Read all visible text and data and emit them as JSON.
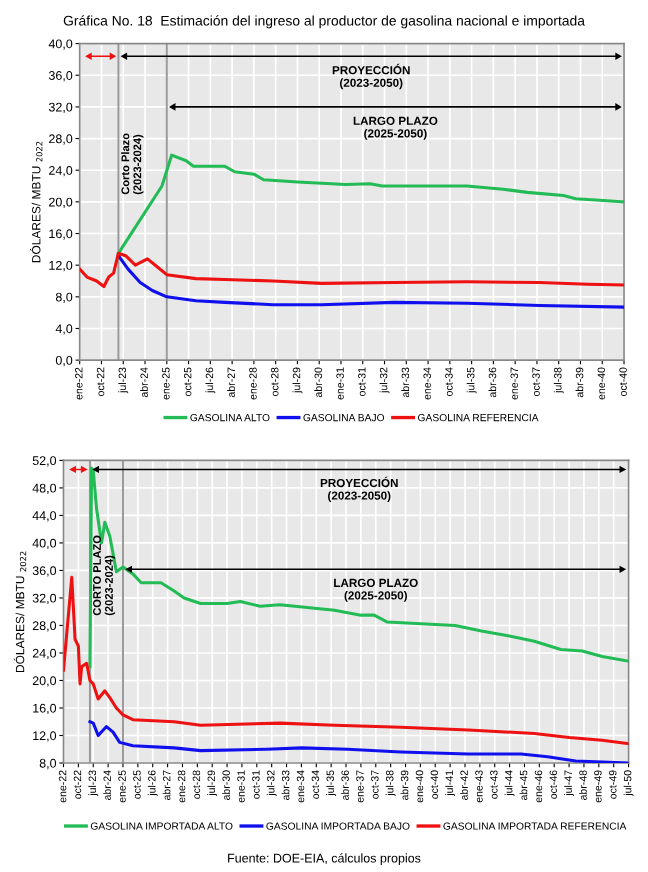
{
  "chart_data": [
    {
      "type": "line",
      "title": "Gráfica No. 18  Estimación del ingreso al productor de gasolina nacional e importada",
      "ylabel": "DÓLARES/ MBTU $_{2022}$",
      "series": [
        {
          "name": "GASOLINA ALTO",
          "color": "#22bb55",
          "x": [
            "2023-05",
            "2024-11",
            "2025-03",
            "2025-09",
            "2025-12",
            "2027-01",
            "2027-05",
            "2028-01",
            "2028-05",
            "2029-07",
            "2031-03",
            "2032-01",
            "2032-06",
            "2035-05",
            "2036-08",
            "2037-06",
            "2038-09",
            "2039-02",
            "2039-12",
            "2040-10"
          ],
          "values": [
            13.5,
            22.0,
            25.9,
            25.2,
            24.5,
            24.5,
            23.8,
            23.5,
            22.8,
            22.5,
            22.2,
            22.3,
            22.0,
            22.0,
            21.6,
            21.2,
            20.8,
            20.4,
            20.2,
            20.0
          ]
        },
        {
          "name": "GASOLINA BAJO",
          "color": "#1010ee",
          "x": [
            "2023-05",
            "2023-09",
            "2024-02",
            "2024-07",
            "2025-01",
            "2026-01",
            "2027-01",
            "2028-09",
            "2030-05",
            "2032-11",
            "2035-05",
            "2037-11",
            "2040-10"
          ],
          "values": [
            13.2,
            11.5,
            9.8,
            8.8,
            8.0,
            7.5,
            7.3,
            7.0,
            7.0,
            7.3,
            7.2,
            6.9,
            6.7
          ]
        },
        {
          "name": "GASOLINA REFERENCIA",
          "color": "#ee1111",
          "x": [
            "2022-01",
            "2022-04",
            "2022-08",
            "2022-11",
            "2023-01",
            "2023-03",
            "2023-05",
            "2023-08",
            "2023-12",
            "2024-05",
            "2024-09",
            "2025-01",
            "2026-01",
            "2027-01",
            "2028-09",
            "2030-05",
            "2032-11",
            "2035-05",
            "2037-11",
            "2039-07",
            "2040-10"
          ],
          "values": [
            11.5,
            10.5,
            10.0,
            9.3,
            10.5,
            11.0,
            13.5,
            13.2,
            12.0,
            12.8,
            11.8,
            10.8,
            10.3,
            10.2,
            10.0,
            9.7,
            9.8,
            9.9,
            9.8,
            9.6,
            9.5
          ]
        }
      ],
      "xlim": [
        "2022-01",
        "2040-10"
      ],
      "xticks": [
        {
          "value": "2022-01",
          "label": "ene-22"
        },
        {
          "value": "2022-10",
          "label": "oct-22"
        },
        {
          "value": "2023-07",
          "label": "jul-23"
        },
        {
          "value": "2024-04",
          "label": "abr-24"
        },
        {
          "value": "2025-01",
          "label": "ene-25"
        },
        {
          "value": "2025-10",
          "label": "oct-25"
        },
        {
          "value": "2026-07",
          "label": "jul-26"
        },
        {
          "value": "2027-04",
          "label": "abr-27"
        },
        {
          "value": "2028-01",
          "label": "ene-28"
        },
        {
          "value": "2028-10",
          "label": "oct-28"
        },
        {
          "value": "2029-07",
          "label": "jul-29"
        },
        {
          "value": "2030-04",
          "label": "abr-30"
        },
        {
          "value": "2031-01",
          "label": "ene-31"
        },
        {
          "value": "2031-10",
          "label": "oct-31"
        },
        {
          "value": "2032-07",
          "label": "jul-32"
        },
        {
          "value": "2033-04",
          "label": "abr-33"
        },
        {
          "value": "2034-01",
          "label": "ene-34"
        },
        {
          "value": "2034-10",
          "label": "oct-34"
        },
        {
          "value": "2035-07",
          "label": "jul-35"
        },
        {
          "value": "2036-04",
          "label": "abr-36"
        },
        {
          "value": "2037-01",
          "label": "ene-37"
        },
        {
          "value": "2037-10",
          "label": "oct-37"
        },
        {
          "value": "2038-07",
          "label": "jul-38"
        },
        {
          "value": "2039-04",
          "label": "abr-39"
        },
        {
          "value": "2040-01",
          "label": "ene-40"
        },
        {
          "value": "2040-10",
          "label": "oct-40"
        }
      ],
      "ylim": [
        0,
        40
      ],
      "yticks": [
        {
          "value": 0,
          "label": "0,0"
        },
        {
          "value": 4,
          "label": "4,0"
        },
        {
          "value": 8,
          "label": "8,0"
        },
        {
          "value": 12,
          "label": "12,0"
        },
        {
          "value": 16,
          "label": "16,0"
        },
        {
          "value": 20,
          "label": "20,0"
        },
        {
          "value": 24,
          "label": "24,0"
        },
        {
          "value": 28,
          "label": "28,0"
        },
        {
          "value": 32,
          "label": "32,0"
        },
        {
          "value": 36,
          "label": "36,0"
        },
        {
          "value": 40,
          "label": "40,0"
        }
      ],
      "ref_lines": [
        {
          "axis": "x",
          "value": "2023-05",
          "label": "Corto Plazo\n(2023-2024)",
          "color": "#999999"
        },
        {
          "axis": "x",
          "value": "2025-01",
          "color": "#999999"
        }
      ],
      "annotations": [
        "PROYECCIÓN\n(2023-2050)",
        "LARGO PLAZO\n(2025-2050)"
      ],
      "grid": true,
      "legend": "bottom"
    },
    {
      "type": "line",
      "ylabel": "DÓLARES/ MBTU $_{2022}$",
      "series": [
        {
          "name": "GASOLINA IMPORTADA ALTO",
          "color": "#22bb55",
          "x": [
            "2023-05",
            "2023-06",
            "2023-07",
            "2023-09",
            "2023-12",
            "2024-02",
            "2024-05",
            "2024-09",
            "2025-01",
            "2025-07",
            "2025-12",
            "2026-12",
            "2027-08",
            "2028-02",
            "2028-12",
            "2030-04",
            "2030-12",
            "2031-12",
            "2032-12",
            "2035-09",
            "2037-01",
            "2037-09",
            "2038-05",
            "2041-10",
            "2043-02",
            "2044-06",
            "2045-10",
            "2047-02",
            "2048-03",
            "2049-03",
            "2050-07"
          ],
          "values": [
            22.0,
            50.9,
            50.5,
            45.0,
            40.0,
            43.0,
            41.0,
            35.8,
            36.5,
            35.5,
            34.2,
            34.2,
            33.0,
            32.0,
            31.2,
            31.2,
            31.5,
            30.8,
            31.0,
            30.2,
            29.5,
            29.5,
            28.5,
            28.0,
            27.2,
            26.5,
            25.7,
            24.5,
            24.3,
            23.5,
            22.8
          ]
        },
        {
          "name": "GASOLINA IMPORTADA BAJO",
          "color": "#1010ee",
          "x": [
            "2023-05",
            "2023-07",
            "2023-10",
            "2024-03",
            "2024-07",
            "2024-11",
            "2025-07",
            "2027-08",
            "2028-12",
            "2032-04",
            "2034-01",
            "2036-05",
            "2039-01",
            "2042-06",
            "2045-02",
            "2046-06",
            "2047-11",
            "2050-07"
          ],
          "values": [
            14.0,
            13.8,
            12.0,
            13.3,
            12.5,
            11.0,
            10.5,
            10.2,
            9.8,
            10.0,
            10.2,
            10.0,
            9.6,
            9.3,
            9.3,
            8.9,
            8.3,
            8.0
          ]
        },
        {
          "name": "GASOLINA IMPORTADA REFERENCIA",
          "color": "#ee1111",
          "x": [
            "2022-01",
            "2022-06",
            "2022-08",
            "2022-10",
            "2022-11",
            "2022-12",
            "2023-03",
            "2023-05",
            "2023-07",
            "2023-10",
            "2024-02",
            "2024-05",
            "2024-09",
            "2025-01",
            "2025-07",
            "2027-08",
            "2028-12",
            "2032-12",
            "2035-09",
            "2039-01",
            "2042-06",
            "2045-10",
            "2047-07",
            "2049-03",
            "2050-07"
          ],
          "values": [
            21.5,
            35.0,
            26.0,
            25.0,
            19.5,
            22.0,
            22.5,
            20.0,
            19.5,
            17.3,
            18.5,
            17.5,
            16.0,
            15.0,
            14.3,
            14.0,
            13.5,
            13.8,
            13.5,
            13.2,
            12.8,
            12.3,
            11.7,
            11.3,
            10.8
          ]
        }
      ],
      "xlim": [
        "2022-01",
        "2050-07"
      ],
      "xticks": [
        {
          "value": "2022-01",
          "label": "ene-22"
        },
        {
          "value": "2022-10",
          "label": "oct-22"
        },
        {
          "value": "2023-07",
          "label": "jul-23"
        },
        {
          "value": "2024-04",
          "label": "abr-24"
        },
        {
          "value": "2025-01",
          "label": "ene-25"
        },
        {
          "value": "2025-10",
          "label": "oct-25"
        },
        {
          "value": "2026-07",
          "label": "jul-26"
        },
        {
          "value": "2027-04",
          "label": "abr-27"
        },
        {
          "value": "2028-01",
          "label": "ene-28"
        },
        {
          "value": "2028-10",
          "label": "oct-28"
        },
        {
          "value": "2029-07",
          "label": "jul-29"
        },
        {
          "value": "2030-04",
          "label": "abr-30"
        },
        {
          "value": "2031-01",
          "label": "ene-31"
        },
        {
          "value": "2031-10",
          "label": "oct-31"
        },
        {
          "value": "2032-07",
          "label": "jul-32"
        },
        {
          "value": "2033-04",
          "label": "abr-33"
        },
        {
          "value": "2034-01",
          "label": "ene-34"
        },
        {
          "value": "2034-10",
          "label": "oct-34"
        },
        {
          "value": "2035-07",
          "label": "jul-35"
        },
        {
          "value": "2036-04",
          "label": "abr-36"
        },
        {
          "value": "2037-01",
          "label": "ene-37"
        },
        {
          "value": "2037-10",
          "label": "oct-37"
        },
        {
          "value": "2038-07",
          "label": "jul-38"
        },
        {
          "value": "2039-04",
          "label": "abr-39"
        },
        {
          "value": "2040-01",
          "label": "ene-40"
        },
        {
          "value": "2040-10",
          "label": "oct-40"
        },
        {
          "value": "2041-07",
          "label": "jul-41"
        },
        {
          "value": "2042-04",
          "label": "abr-42"
        },
        {
          "value": "2043-01",
          "label": "ene-43"
        },
        {
          "value": "2043-10",
          "label": "oct-43"
        },
        {
          "value": "2044-07",
          "label": "jul-44"
        },
        {
          "value": "2045-04",
          "label": "abr-45"
        },
        {
          "value": "2046-01",
          "label": "ene-46"
        },
        {
          "value": "2046-10",
          "label": "oct-46"
        },
        {
          "value": "2047-07",
          "label": "jul-47"
        },
        {
          "value": "2048-04",
          "label": "abr-48"
        },
        {
          "value": "2049-01",
          "label": "ene-49"
        },
        {
          "value": "2049-10",
          "label": "oct-49"
        },
        {
          "value": "2050-07",
          "label": "jul-50"
        }
      ],
      "ylim": [
        8,
        52
      ],
      "yticks": [
        {
          "value": 8,
          "label": "8,0"
        },
        {
          "value": 12,
          "label": "12,0"
        },
        {
          "value": 16,
          "label": "16,0"
        },
        {
          "value": 20,
          "label": "20,0"
        },
        {
          "value": 24,
          "label": "24,0"
        },
        {
          "value": 28,
          "label": "28,0"
        },
        {
          "value": 32,
          "label": "32,0"
        },
        {
          "value": 36,
          "label": "36,0"
        },
        {
          "value": 40,
          "label": "40,0"
        },
        {
          "value": 44,
          "label": "44,0"
        },
        {
          "value": 48,
          "label": "48,0"
        },
        {
          "value": 52,
          "label": "52,0"
        }
      ],
      "ref_lines": [
        {
          "axis": "x",
          "value": "2023-05",
          "label": "CORTO PLAZO\n(2023-2024)",
          "color": "#999999"
        },
        {
          "axis": "x",
          "value": "2025-01",
          "color": "#999999"
        }
      ],
      "annotations": [
        "PROYECCIÓN\n(2023-2050)",
        "LARGO PLAZO\n(2025-2050)",
        "Fuente: DOE-EIA, cálculos propios"
      ],
      "grid": true,
      "legend": "bottom"
    }
  ]
}
